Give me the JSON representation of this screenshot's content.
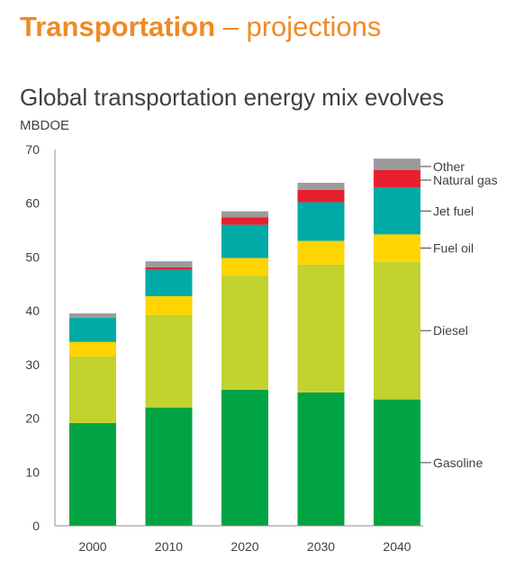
{
  "header": {
    "bold": "Transportation",
    "rest": " – projections"
  },
  "chart_data": {
    "type": "bar",
    "stacked": true,
    "title": "Global transportation energy mix evolves",
    "ylabel": "MBDOE",
    "xlabel": "",
    "ylim": [
      0,
      70
    ],
    "yticks": [
      0,
      10,
      20,
      30,
      40,
      50,
      60,
      70
    ],
    "grid": false,
    "legend_position": "right, labels aligned to stacked segments of last bar",
    "categories": [
      "2000",
      "2010",
      "2020",
      "2030",
      "2040"
    ],
    "series": [
      {
        "name": "Gasoline",
        "color": "#00a443",
        "values": [
          19.1,
          22.0,
          25.3,
          24.8,
          23.5
        ]
      },
      {
        "name": "Diesel",
        "color": "#c2d22e",
        "values": [
          12.4,
          17.2,
          21.3,
          23.8,
          25.6
        ]
      },
      {
        "name": "Fuel oil",
        "color": "#ffd400",
        "values": [
          2.7,
          3.5,
          3.2,
          4.4,
          5.1
        ]
      },
      {
        "name": "Jet fuel",
        "color": "#00aaa6",
        "values": [
          4.5,
          4.9,
          6.2,
          7.2,
          8.7
        ]
      },
      {
        "name": "Natural gas",
        "color": "#e8202e",
        "values": [
          0.0,
          0.5,
          1.4,
          2.3,
          3.3
        ]
      },
      {
        "name": "Other",
        "color": "#9b9b9b",
        "values": [
          0.8,
          1.1,
          1.1,
          1.3,
          2.1
        ]
      }
    ]
  }
}
